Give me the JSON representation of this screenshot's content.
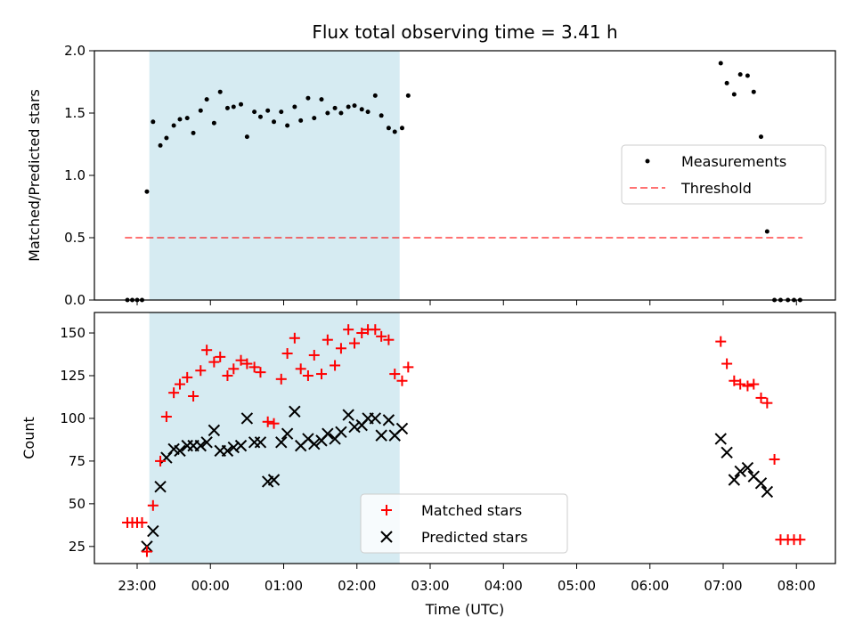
{
  "colors": {
    "band": "#add8e6",
    "threshold": "#ff0000",
    "matched": "#ff0000",
    "predicted": "#000000",
    "measurement": "#000000"
  },
  "chart_data": [
    {
      "type": "scatter",
      "title": "Flux total observing time = 3.41 h",
      "ylabel": "Matched/Predicted stars",
      "xlabel": "",
      "ylim": [
        0,
        2.0
      ],
      "yticks": [
        "0.0",
        "0.5",
        "1.0",
        "1.5",
        "2.0"
      ],
      "shaded_region": [
        "23:10",
        "02:35"
      ],
      "legend_position": "center-right",
      "threshold": {
        "name": "Threshold",
        "y": 0.5,
        "x_start": "22:50",
        "x_end": "08:05"
      },
      "series": [
        {
          "name": "Measurements",
          "x": [
            "22:52",
            "22:56",
            "23:00",
            "23:04",
            "23:08",
            "23:13",
            "23:19",
            "23:24",
            "23:30",
            "23:35",
            "23:41",
            "23:46",
            "23:52",
            "23:57",
            "00:03",
            "00:08",
            "00:14",
            "00:19",
            "00:25",
            "00:30",
            "00:36",
            "00:41",
            "00:47",
            "00:52",
            "00:58",
            "01:03",
            "01:09",
            "01:14",
            "01:20",
            "01:25",
            "01:31",
            "01:36",
            "01:42",
            "01:47",
            "01:53",
            "01:58",
            "02:04",
            "02:09",
            "02:15",
            "02:20",
            "02:26",
            "02:31",
            "02:37",
            "02:42",
            "06:58",
            "07:03",
            "07:09",
            "07:14",
            "07:20",
            "07:25",
            "07:31",
            "07:36",
            "07:42",
            "07:47",
            "07:53",
            "07:58",
            "08:03"
          ],
          "y": [
            0,
            0,
            0,
            0,
            0.87,
            1.43,
            1.24,
            1.3,
            1.4,
            1.45,
            1.46,
            1.34,
            1.52,
            1.61,
            1.42,
            1.67,
            1.54,
            1.55,
            1.57,
            1.31,
            1.51,
            1.47,
            1.52,
            1.43,
            1.51,
            1.4,
            1.55,
            1.44,
            1.62,
            1.46,
            1.61,
            1.5,
            1.54,
            1.5,
            1.55,
            1.56,
            1.53,
            1.51,
            1.64,
            1.48,
            1.38,
            1.35,
            1.38,
            1.64,
            1.9,
            1.74,
            1.65,
            1.81,
            1.8,
            1.67,
            1.31,
            0.55,
            0,
            0,
            0,
            0,
            0
          ]
        }
      ]
    },
    {
      "type": "scatter",
      "title": "",
      "ylabel": "Count",
      "xlabel": "Time (UTC)",
      "ylim": [
        15,
        162
      ],
      "yticks": [
        "25",
        "50",
        "75",
        "100",
        "125",
        "150"
      ],
      "xticks": [
        "23:00",
        "00:00",
        "01:00",
        "02:00",
        "03:00",
        "04:00",
        "05:00",
        "06:00",
        "07:00",
        "08:00"
      ],
      "shaded_region": [
        "23:10",
        "02:35"
      ],
      "legend_position": "lower-center",
      "series": [
        {
          "name": "Matched stars",
          "marker": "+",
          "x": [
            "22:52",
            "22:56",
            "23:00",
            "23:04",
            "23:08",
            "23:13",
            "23:19",
            "23:24",
            "23:30",
            "23:35",
            "23:41",
            "23:46",
            "23:52",
            "23:57",
            "00:03",
            "00:08",
            "00:14",
            "00:19",
            "00:25",
            "00:30",
            "00:36",
            "00:41",
            "00:47",
            "00:52",
            "00:58",
            "01:03",
            "01:09",
            "01:14",
            "01:20",
            "01:25",
            "01:31",
            "01:36",
            "01:42",
            "01:47",
            "01:53",
            "01:58",
            "02:04",
            "02:09",
            "02:15",
            "02:20",
            "02:26",
            "02:31",
            "02:37",
            "02:42",
            "06:58",
            "07:03",
            "07:09",
            "07:14",
            "07:20",
            "07:25",
            "07:31",
            "07:36",
            "07:42",
            "07:47",
            "07:53",
            "07:58",
            "08:03"
          ],
          "y": [
            39,
            39,
            39,
            39,
            22,
            49,
            75,
            101,
            115,
            120,
            124,
            113,
            128,
            140,
            133,
            136,
            125,
            129,
            134,
            132,
            130,
            127,
            98,
            97,
            123,
            138,
            147,
            129,
            125,
            137,
            126,
            146,
            131,
            141,
            152,
            144,
            150,
            152,
            152,
            148,
            146,
            126,
            122,
            130,
            145,
            132,
            122,
            120,
            119,
            120,
            112,
            109,
            76,
            29,
            29,
            29,
            29
          ]
        },
        {
          "name": "Predicted stars",
          "marker": "x",
          "x": [
            "23:08",
            "23:13",
            "23:19",
            "23:24",
            "23:30",
            "23:35",
            "23:41",
            "23:46",
            "23:52",
            "23:57",
            "00:03",
            "00:08",
            "00:14",
            "00:19",
            "00:25",
            "00:30",
            "00:36",
            "00:41",
            "00:47",
            "00:52",
            "00:58",
            "01:03",
            "01:09",
            "01:14",
            "01:20",
            "01:25",
            "01:31",
            "01:36",
            "01:42",
            "01:47",
            "01:53",
            "01:58",
            "02:04",
            "02:09",
            "02:15",
            "02:20",
            "02:26",
            "02:31",
            "02:37",
            "06:58",
            "07:03",
            "07:09",
            "07:14",
            "07:20",
            "07:25",
            "07:31",
            "07:36"
          ],
          "y": [
            25,
            34,
            60,
            77,
            82,
            81,
            84,
            84,
            84,
            86,
            93,
            81,
            81,
            83,
            84,
            100,
            86,
            86,
            63,
            64,
            86,
            91,
            104,
            84,
            88,
            85,
            87,
            91,
            88,
            92,
            102,
            95,
            96,
            100,
            100,
            90,
            99,
            90,
            94,
            88,
            80,
            64,
            69,
            71,
            66,
            62,
            57
          ]
        }
      ]
    }
  ]
}
